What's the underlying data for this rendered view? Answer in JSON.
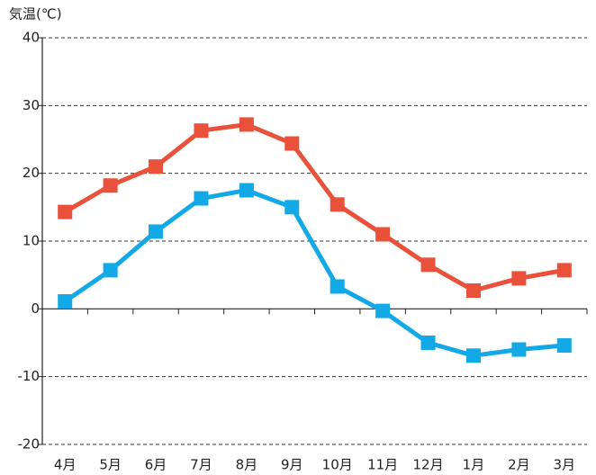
{
  "chart_data": {
    "type": "line",
    "y_label": "気温(℃)",
    "categories": [
      "4月",
      "5月",
      "6月",
      "7月",
      "8月",
      "9月",
      "10月",
      "11月",
      "12月",
      "1月",
      "2月",
      "3月"
    ],
    "series": [
      {
        "color": "#e9513a",
        "values": [
          14.3,
          18.2,
          21.0,
          26.3,
          27.2,
          24.4,
          15.4,
          11.0,
          6.5,
          2.7,
          4.5,
          5.7
        ]
      },
      {
        "color": "#12a9e6",
        "values": [
          1.1,
          5.7,
          11.4,
          16.3,
          17.5,
          15.0,
          3.3,
          -0.3,
          -5.0,
          -6.9,
          -6.0,
          -5.4
        ]
      }
    ],
    "ylim": [
      -20,
      40
    ],
    "yticks": [
      -20,
      -10,
      0,
      10,
      20,
      30,
      40
    ],
    "grid": true
  }
}
